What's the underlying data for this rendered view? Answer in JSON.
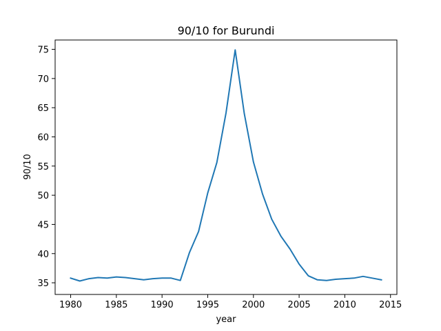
{
  "chart_data": {
    "type": "line",
    "title": "90/10 for Burundi",
    "xlabel": "year",
    "ylabel": "90/10",
    "xlim": [
      1978.3,
      2015.7
    ],
    "ylim": [
      33.0,
      76.6
    ],
    "xticks": [
      1980,
      1985,
      1990,
      1995,
      2000,
      2005,
      2010,
      2015
    ],
    "yticks": [
      35,
      40,
      45,
      50,
      55,
      60,
      65,
      70,
      75
    ],
    "grid": false,
    "line_color": "#1f77b4",
    "series": [
      {
        "x": [
          1980,
          1981,
          1982,
          1983,
          1984,
          1985,
          1986,
          1987,
          1988,
          1989,
          1990,
          1991,
          1992,
          1993,
          1994,
          1995,
          1996,
          1997,
          1998,
          1999,
          2000,
          2001,
          2002,
          2003,
          2004,
          2005,
          2006,
          2007,
          2008,
          2009,
          2010,
          2011,
          2012,
          2013,
          2014
        ],
        "values": [
          35.8,
          35.3,
          35.7,
          35.9,
          35.8,
          36.0,
          35.9,
          35.7,
          35.5,
          35.7,
          35.8,
          35.8,
          35.4,
          40.2,
          43.8,
          50.4,
          55.6,
          64.1,
          74.9,
          64.0,
          55.7,
          50.2,
          45.9,
          43.0,
          40.8,
          38.2,
          36.2,
          35.5,
          35.4,
          35.6,
          35.7,
          35.8,
          36.1,
          35.8,
          35.5
        ]
      }
    ]
  }
}
